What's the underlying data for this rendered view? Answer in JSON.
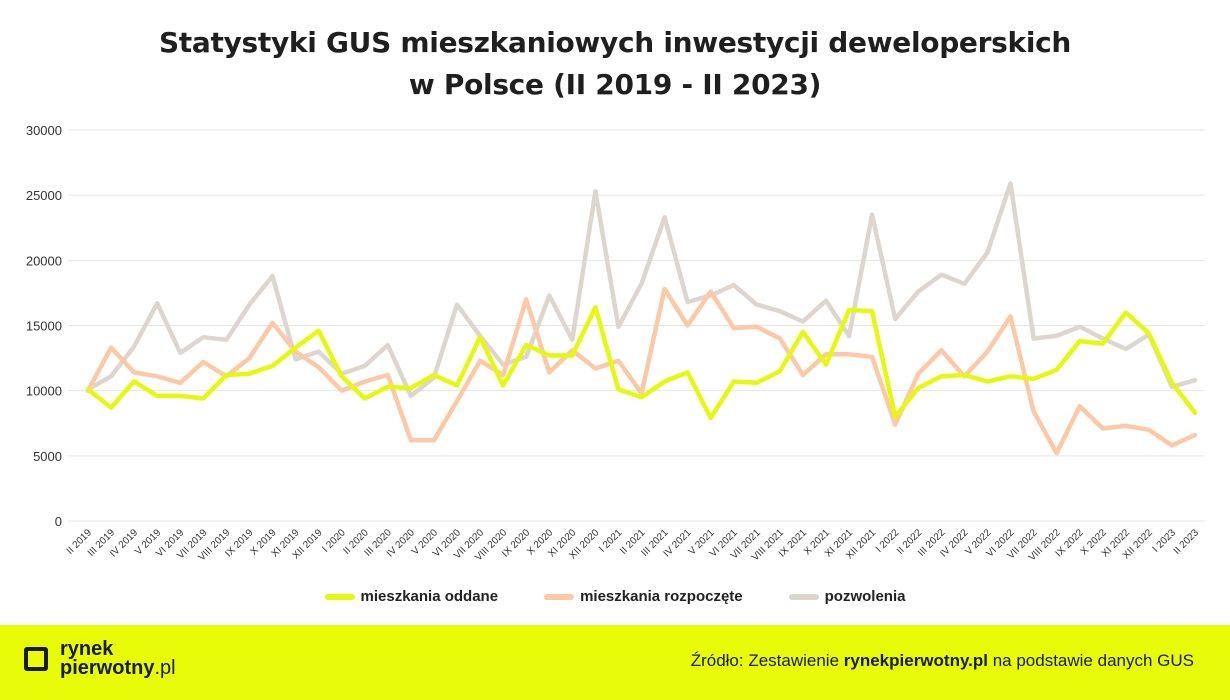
{
  "title_line1": "Statystyki GUS mieszkaniowych inwestycji deweloperskich",
  "title_line2": "w Polsce (II 2019 - II 2023)",
  "footer": {
    "logo_line1": "rynek",
    "logo_line2_main": "pierwotny",
    "logo_line2_suffix": ".pl",
    "source_prefix": "Źródło: Zestawienie ",
    "source_site": "rynekpierwotny.pl",
    "source_suffix": " na podstawie danych GUS"
  },
  "colors": {
    "oddane": "#e4f90d",
    "rozpoczete": "#fcc9a6",
    "pozwolenia": "#ddd6cf",
    "footer_bg": "#e8fc0a"
  },
  "chart_data": {
    "type": "line",
    "title": "Statystyki GUS mieszkaniowych inwestycji deweloperskich w Polsce (II 2019 - II 2023)",
    "xlabel": "",
    "ylabel": "",
    "ylim": [
      0,
      30000
    ],
    "yticks": [
      0,
      5000,
      10000,
      15000,
      20000,
      25000,
      30000
    ],
    "grid": true,
    "legend_position": "bottom",
    "categories": [
      "II 2019",
      "III 2019",
      "IV 2019",
      "V 2019",
      "VI 2019",
      "VII 2019",
      "VIII 2019",
      "IX 2019",
      "X 2019",
      "XI 2019",
      "XII 2019",
      "I 2020",
      "II 2020",
      "III 2020",
      "IV 2020",
      "V 2020",
      "VI 2020",
      "VII 2020",
      "VIII 2020",
      "IX 2020",
      "X 2020",
      "XI 2020",
      "XII 2020",
      "I 2021",
      "II 2021",
      "III 2021",
      "IV 2021",
      "V 2021",
      "VI 2021",
      "VII 2021",
      "VIII 2021",
      "IX 2021",
      "X 2021",
      "XI 2021",
      "XII 2021",
      "I 2022",
      "II 2022",
      "III 2022",
      "IV 2022",
      "V 2022",
      "VI 2022",
      "VII 2022",
      "VIII 2022",
      "IX 2022",
      "X 2022",
      "XI 2022",
      "XII 2022",
      "I 2023",
      "II 2023"
    ],
    "series": [
      {
        "name": "mieszkania oddane",
        "key": "oddane",
        "values": [
          10100,
          8700,
          10700,
          9600,
          9600,
          9400,
          11200,
          11300,
          11900,
          13300,
          14600,
          11100,
          9400,
          10300,
          10200,
          11200,
          10400,
          14100,
          10400,
          13500,
          12700,
          12700,
          16400,
          10100,
          9500,
          10700,
          11400,
          7900,
          10700,
          10600,
          11500,
          14500,
          12000,
          16200,
          16100,
          8000,
          10200,
          11100,
          11200,
          10700,
          11100,
          10900,
          11600,
          13800,
          13600,
          16000,
          14400,
          10600,
          8300
        ]
      },
      {
        "name": "mieszkania rozpoczęte",
        "key": "rozpoczete",
        "values": [
          10000,
          13300,
          11400,
          11100,
          10600,
          12200,
          11100,
          12500,
          15200,
          13000,
          11800,
          10000,
          10700,
          11200,
          6200,
          6200,
          9200,
          12300,
          11200,
          17000,
          11400,
          13100,
          11700,
          12300,
          9800,
          17800,
          15000,
          17600,
          14800,
          14900,
          14000,
          11200,
          12800,
          12800,
          12600,
          7400,
          11300,
          13100,
          11100,
          13000,
          15700,
          8400,
          5200,
          8800,
          7100,
          7300,
          7000,
          5800,
          6600
        ]
      },
      {
        "name": "pozwolenia",
        "key": "pozwolenia",
        "values": [
          10100,
          11100,
          13400,
          16700,
          12900,
          14100,
          13900,
          16600,
          18800,
          12400,
          13000,
          11300,
          11900,
          13500,
          9600,
          11000,
          16600,
          14200,
          12000,
          12600,
          17300,
          13900,
          25300,
          14900,
          18200,
          23300,
          16800,
          17300,
          18100,
          16600,
          16100,
          15300,
          16900,
          14200,
          23500,
          15500,
          17600,
          18900,
          18200,
          20600,
          25900,
          14000,
          14200,
          14900,
          14000,
          13200,
          14300,
          10300,
          10800
        ]
      }
    ]
  }
}
